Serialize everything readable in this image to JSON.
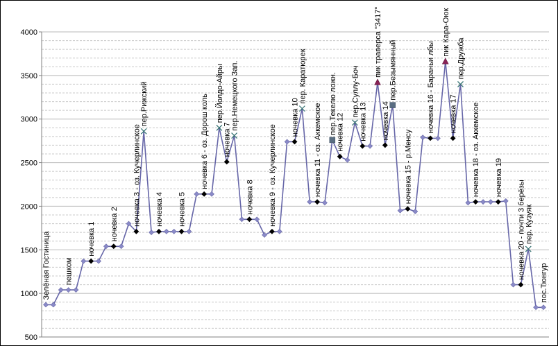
{
  "chart_data": {
    "type": "line",
    "title": "",
    "xlabel": "",
    "ylabel": "",
    "ylim": [
      500,
      4000
    ],
    "yticks": [
      "500",
      "1000",
      "1500",
      "2000",
      "2500",
      "3000",
      "3500",
      "4000"
    ],
    "grid": "dashed-horizontal",
    "legend": "none",
    "colors": {
      "line": "#6666a8",
      "marker_default": "#8a8ac8",
      "marker_camp": "#000000",
      "marker_pass": "#2f6e6e",
      "marker_peak": "#882255",
      "marker_square": "#5a6e82"
    },
    "values": [
      870,
      870,
      1040,
      1040,
      1040,
      1370,
      1370,
      1370,
      1540,
      1540,
      1540,
      1800,
      1710,
      2860,
      1700,
      1710,
      1710,
      1710,
      1710,
      1710,
      2140,
      2140,
      2140,
      2900,
      2510,
      2810,
      1850,
      1850,
      1850,
      1670,
      1710,
      1710,
      2740,
      2740,
      3120,
      2050,
      2050,
      2040,
      2760,
      2570,
      2530,
      2960,
      2690,
      2690,
      3420,
      2700,
      3160,
      1950,
      1970,
      1940,
      2790,
      2780,
      2780,
      3660,
      2780,
      3400,
      2040,
      2050,
      2050,
      2050,
      2050,
      2060,
      1100,
      1100,
      1510,
      840,
      840
    ],
    "marker_kinds": [
      "d",
      "d",
      "d",
      "d",
      "d",
      "d",
      "c",
      "d",
      "d",
      "c",
      "d",
      "d",
      "c",
      "x",
      "d",
      "c",
      "d",
      "d",
      "c",
      "d",
      "d",
      "c",
      "d",
      "x",
      "c",
      "x",
      "d",
      "c",
      "d",
      "d",
      "c",
      "d",
      "d",
      "c",
      "x",
      "d",
      "c",
      "d",
      "s",
      "c",
      "d",
      "x",
      "c",
      "d",
      "t",
      "c",
      "s",
      "d",
      "c",
      "d",
      "d",
      "c",
      "d",
      "t",
      "c",
      "x",
      "d",
      "c",
      "d",
      "d",
      "c",
      "d",
      "d",
      "c",
      "x",
      "d",
      "d"
    ],
    "annotations": [
      {
        "index": 0,
        "text": "Зелёная Гостиница"
      },
      {
        "index": 3,
        "text": "пешком"
      },
      {
        "index": 6,
        "text": "ночевка 1"
      },
      {
        "index": 9,
        "text": "ночевка 2"
      },
      {
        "index": 12,
        "text": "ночевка 3 - оз. Кучерлинское"
      },
      {
        "index": 13,
        "text": "пер.Рижский"
      },
      {
        "index": 15,
        "text": "ночевка 4"
      },
      {
        "index": 18,
        "text": "ночевка 5"
      },
      {
        "index": 21,
        "text": "ночевка 6 - оз. Дорош коль"
      },
      {
        "index": 23,
        "text": "пер.Йолдо-Айры"
      },
      {
        "index": 24,
        "text": "ночевка 7"
      },
      {
        "index": 25,
        "text": "пер.Немецкого Зап."
      },
      {
        "index": 27,
        "text": "ночевка 8"
      },
      {
        "index": 30,
        "text": "ночевка 9 - оз. Кучерлинское"
      },
      {
        "index": 33,
        "text": "ночевка 10"
      },
      {
        "index": 34,
        "text": "пер. Каратюрек"
      },
      {
        "index": 36,
        "text": "ночевка 11 - оз. Аккемское"
      },
      {
        "index": 38,
        "text": "пер.Текелю ложн."
      },
      {
        "index": 39,
        "text": "ночевка 12"
      },
      {
        "index": 41,
        "text": "пер.Суллу-Боч"
      },
      {
        "index": 42,
        "text": "ночевка 13"
      },
      {
        "index": 44,
        "text": "пик траверса \"3417\""
      },
      {
        "index": 45,
        "text": "ночевка 14"
      },
      {
        "index": 46,
        "text": "пер.Безымянный"
      },
      {
        "index": 48,
        "text": "ночевка 15 - р.Менсу"
      },
      {
        "index": 51,
        "text": "ночевка 16 - Бараньи лбы"
      },
      {
        "index": 53,
        "text": "пик Кара-Оюк"
      },
      {
        "index": 54,
        "text": "ночевка 17"
      },
      {
        "index": 55,
        "text": "пер.Дружба"
      },
      {
        "index": 57,
        "text": "ночевка 18 - оз. Аккемское"
      },
      {
        "index": 60,
        "text": "ночевка 19"
      },
      {
        "index": 63,
        "text": "ночевка 20 - почти 3 берёзы"
      },
      {
        "index": 64,
        "text": "пер. Кузуяк"
      },
      {
        "index": 66,
        "text": "пос.Тюнгур"
      }
    ]
  }
}
